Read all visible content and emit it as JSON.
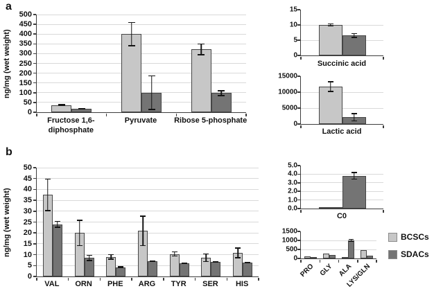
{
  "colors": {
    "bcscs_fill": "#c7c7c7",
    "sdacs_fill": "#747474",
    "bar_border": "#454545",
    "grid": "#d9d9d9",
    "axis": "#3c3c3c",
    "error_bar": "#141414",
    "text": "#111111",
    "background": "#ffffff"
  },
  "panels": [
    {
      "label": "a"
    },
    {
      "label": "b"
    }
  ],
  "legend": {
    "items": [
      {
        "label": "BCSCs",
        "color_key": "bcscs"
      },
      {
        "label": "SDACs",
        "color_key": "sdacs"
      }
    ]
  },
  "chart_data": [
    {
      "id": "panel-a-metabolites",
      "type": "bar",
      "title": "",
      "xlabel": "",
      "ylabel": "ng/mg (wet weight)",
      "ylim": [
        0,
        500
      ],
      "ytick_values": [
        0,
        50,
        100,
        150,
        200,
        250,
        300,
        350,
        400,
        450,
        500
      ],
      "ytick_labels": [
        "0",
        "50",
        "100",
        "150",
        "200",
        "250",
        "300",
        "350",
        "400",
        "450",
        "500"
      ],
      "grid_at_max": true,
      "legend_position": "none",
      "categories": [
        "Fructose 1,6-diphosphate",
        "Pyruvate",
        "Ribose 5-phosphate"
      ],
      "series": [
        {
          "name": "BCSCs",
          "color": "bcscs",
          "values": [
            36,
            400,
            322
          ],
          "errors": [
            5,
            62,
            30
          ]
        },
        {
          "name": "SDACs",
          "color": "sdacs",
          "values": [
            18,
            100,
            98
          ],
          "errors": [
            4,
            88,
            15
          ]
        }
      ]
    },
    {
      "id": "succinic-acid",
      "type": "bar",
      "title": "Succinic acid",
      "xlabel": "",
      "ylabel": "",
      "ylim": [
        0,
        15
      ],
      "ytick_values": [
        0,
        5,
        10,
        15
      ],
      "ytick_labels": [
        "0",
        "5",
        "10",
        "15"
      ],
      "grid_at_max": false,
      "legend_position": "none",
      "categories": [
        "Succinic acid"
      ],
      "series": [
        {
          "name": "BCSCs",
          "color": "bcscs",
          "values": [
            10.0
          ],
          "errors": [
            0.5
          ]
        },
        {
          "name": "SDACs",
          "color": "sdacs",
          "values": [
            6.5
          ],
          "errors": [
            0.8
          ]
        }
      ]
    },
    {
      "id": "lactic-acid",
      "type": "bar",
      "title": "Lactic acid",
      "xlabel": "",
      "ylabel": "",
      "ylim": [
        0,
        15000
      ],
      "ytick_values": [
        0,
        5000,
        10000,
        15000
      ],
      "ytick_labels": [
        "0",
        "5000",
        "10000",
        "15000"
      ],
      "grid_at_max": false,
      "legend_position": "none",
      "categories": [
        "Lactic acid"
      ],
      "series": [
        {
          "name": "BCSCs",
          "color": "bcscs",
          "values": [
            11700
          ],
          "errors": [
            1700
          ]
        },
        {
          "name": "SDACs",
          "color": "sdacs",
          "values": [
            2100
          ],
          "errors": [
            1300
          ]
        }
      ]
    },
    {
      "id": "panel-b-amino-acids",
      "type": "bar",
      "title": "",
      "xlabel": "",
      "ylabel": "ng/mg (wet weight)",
      "ylim": [
        0,
        50
      ],
      "ytick_values": [
        0,
        5,
        10,
        15,
        20,
        25,
        30,
        35,
        40,
        45,
        50
      ],
      "ytick_labels": [
        "0",
        "5",
        "10",
        "15",
        "20",
        "25",
        "30",
        "35",
        "40",
        "45",
        "50"
      ],
      "grid_at_max": true,
      "legend_position": "none",
      "categories": [
        "VAL",
        "ORN",
        "PHE",
        "ARG",
        "TYR",
        "SER",
        "HIS"
      ],
      "series": [
        {
          "name": "BCSCs",
          "color": "bcscs",
          "values": [
            37.5,
            20,
            9,
            21,
            10.3,
            8.6,
            10.8
          ],
          "errors": [
            7.5,
            6,
            1.3,
            7,
            1.2,
            2,
            2.5
          ]
        },
        {
          "name": "SDACs",
          "color": "sdacs",
          "values": [
            24,
            8.5,
            4.3,
            7,
            6,
            6.6,
            6.4
          ],
          "errors": [
            1.6,
            1.4,
            0.4,
            0.4,
            0.3,
            0.3,
            0.4
          ]
        }
      ]
    },
    {
      "id": "c0-carnitine",
      "type": "bar",
      "title": "C0",
      "xlabel": "",
      "ylabel": "",
      "ylim": [
        0,
        5
      ],
      "ytick_values": [
        0,
        1,
        2,
        3,
        4,
        5
      ],
      "ytick_labels": [
        "0.0",
        "1.0",
        "2.0",
        "3.0",
        "4.0",
        "5.0"
      ],
      "grid_at_max": false,
      "legend_position": "none",
      "categories": [
        "C0"
      ],
      "series": [
        {
          "name": "BCSCs",
          "color": "bcscs",
          "values": [
            0.15
          ],
          "errors": [
            null
          ]
        },
        {
          "name": "SDACs",
          "color": "sdacs",
          "values": [
            3.8
          ],
          "errors": [
            0.45
          ]
        }
      ]
    },
    {
      "id": "high-abundance-amino-acids",
      "type": "bar",
      "title": "",
      "xlabel": "",
      "ylabel": "",
      "ylim": [
        0,
        1500
      ],
      "ytick_values": [
        0,
        500,
        1000,
        1500
      ],
      "ytick_labels": [
        "0",
        "500",
        "1000",
        "1500"
      ],
      "grid_at_max": false,
      "legend_position": "none",
      "categories": [
        "PRO",
        "GLY",
        "ALA",
        "LYS/GLN"
      ],
      "series": [
        {
          "name": "BCSCs",
          "color": "bcscs",
          "values": [
            120,
            280,
            30,
            450
          ],
          "errors": [
            null,
            null,
            null,
            null
          ]
        },
        {
          "name": "SDACs",
          "color": "sdacs",
          "values": [
            40,
            190,
            1000,
            170
          ],
          "errors": [
            null,
            null,
            90,
            null
          ]
        }
      ]
    }
  ]
}
